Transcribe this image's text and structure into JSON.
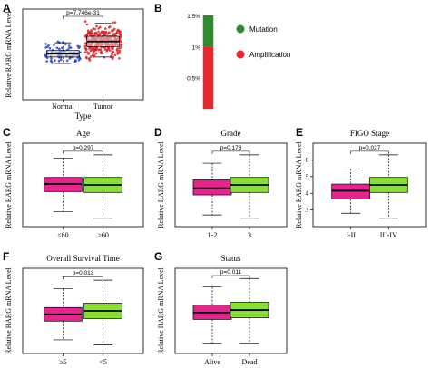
{
  "panels": {
    "A": {
      "label": "A"
    },
    "B": {
      "label": "B"
    },
    "C": {
      "label": "C"
    },
    "D": {
      "label": "D"
    },
    "E": {
      "label": "E"
    },
    "F": {
      "label": "F"
    },
    "G": {
      "label": "G"
    }
  },
  "chart_data": [
    {
      "panel": "A",
      "type": "box",
      "subtype": "box with jittered points",
      "title": "",
      "xlabel": "Type",
      "ylabel": "Relative RARG mRNA Level",
      "categories": [
        "Normal",
        "Tumor"
      ],
      "pvalue_label": "p=7.746e-31",
      "ylim": [
        0,
        7
      ],
      "yticks": [],
      "series": [
        {
          "category": "Normal",
          "color": "#1f3fe0",
          "box_fill": "#d9d9d9",
          "whisker_low": 2.8,
          "q1": 3.3,
          "median": 3.55,
          "q3": 3.8,
          "whisker_high": 4.4,
          "point_count": 80
        },
        {
          "category": "Tumor",
          "color": "#e0202a",
          "box_fill": "#d9d9d9",
          "whisker_low": 3.3,
          "q1": 4.1,
          "median": 4.5,
          "q3": 4.9,
          "whisker_high": 5.9,
          "point_count": 300
        }
      ]
    },
    {
      "panel": "B",
      "type": "bar",
      "subtype": "stacked",
      "yticks": [
        "1.5%",
        "1%",
        "0.5%"
      ],
      "ylim": [
        0,
        1.5
      ],
      "series": [
        {
          "name": "Amplification",
          "value": 1.0,
          "color": "#e8262b"
        },
        {
          "name": "Mutation",
          "value": 0.5,
          "color": "#2e8b2e"
        }
      ],
      "legend": {
        "placement": "right",
        "entries": [
          "Mutation",
          "Amplification"
        ]
      }
    },
    {
      "panel": "C",
      "type": "box",
      "title": "Age",
      "ylabel": "Relative RARG mRNA Level",
      "categories": [
        "<60",
        "≥60"
      ],
      "pvalue_label": "p=0.297",
      "ylim": [
        2,
        7
      ],
      "yticks": [],
      "series": [
        {
          "category": "<60",
          "color": "#e8238f",
          "whisker_low": 2.9,
          "q1": 4.1,
          "median": 4.55,
          "q3": 4.95,
          "whisker_high": 6.1
        },
        {
          "category": "≥60",
          "color": "#88e02f",
          "whisker_low": 2.5,
          "q1": 4.05,
          "median": 4.5,
          "q3": 4.95,
          "whisker_high": 6.3
        }
      ]
    },
    {
      "panel": "D",
      "type": "box",
      "title": "Grade",
      "ylabel": "Relative RARG mRNA Level",
      "categories": [
        "1-2",
        "3"
      ],
      "pvalue_label": "p=0.178",
      "ylim": [
        2,
        7
      ],
      "yticks": [],
      "series": [
        {
          "category": "1-2",
          "color": "#e8238f",
          "whisker_low": 2.7,
          "q1": 3.9,
          "median": 4.3,
          "q3": 4.8,
          "whisker_high": 5.8
        },
        {
          "category": "3",
          "color": "#88e02f",
          "whisker_low": 2.5,
          "q1": 4.05,
          "median": 4.5,
          "q3": 4.95,
          "whisker_high": 6.3
        }
      ]
    },
    {
      "panel": "E",
      "type": "box",
      "title": "FIGO Stage",
      "ylabel": "Relative RARG mRNA Level",
      "categories": [
        "I-II",
        "III-IV"
      ],
      "pvalue_label": "p=0.027",
      "ylim": [
        2,
        7
      ],
      "yticks": [
        "3",
        "4",
        "5",
        "6"
      ],
      "series": [
        {
          "category": "I-II",
          "color": "#e8238f",
          "whisker_low": 2.8,
          "q1": 3.65,
          "median": 4.15,
          "q3": 4.55,
          "whisker_high": 5.45
        },
        {
          "category": "III-IV",
          "color": "#88e02f",
          "whisker_low": 2.5,
          "q1": 4.05,
          "median": 4.5,
          "q3": 4.95,
          "whisker_high": 6.3
        }
      ]
    },
    {
      "panel": "F",
      "type": "box",
      "title": "Overall Survival Time",
      "ylabel": "Relative RARG mRNA Level",
      "categories": [
        "≥5",
        "<5"
      ],
      "pvalue_label": "p=0.013",
      "ylim": [
        2,
        7
      ],
      "yticks": [],
      "series": [
        {
          "category": "≥5",
          "color": "#e8238f",
          "whisker_low": 2.8,
          "q1": 3.9,
          "median": 4.3,
          "q3": 4.7,
          "whisker_high": 5.8
        },
        {
          "category": "<5",
          "color": "#88e02f",
          "whisker_low": 2.5,
          "q1": 4.05,
          "median": 4.5,
          "q3": 4.95,
          "whisker_high": 6.3
        }
      ]
    },
    {
      "panel": "G",
      "type": "box",
      "title": "Status",
      "ylabel": "Relative RARG mRNA Level",
      "categories": [
        "Alive",
        "Dead"
      ],
      "pvalue_label": "p=0.011",
      "ylim": [
        2,
        7
      ],
      "yticks": [],
      "series": [
        {
          "category": "Alive",
          "color": "#e8238f",
          "whisker_low": 2.6,
          "q1": 4.0,
          "median": 4.4,
          "q3": 4.85,
          "whisker_high": 5.9
        },
        {
          "category": "Dead",
          "color": "#88e02f",
          "whisker_low": 2.6,
          "q1": 4.1,
          "median": 4.55,
          "q3": 5.0,
          "whisker_high": 6.4
        }
      ]
    }
  ]
}
